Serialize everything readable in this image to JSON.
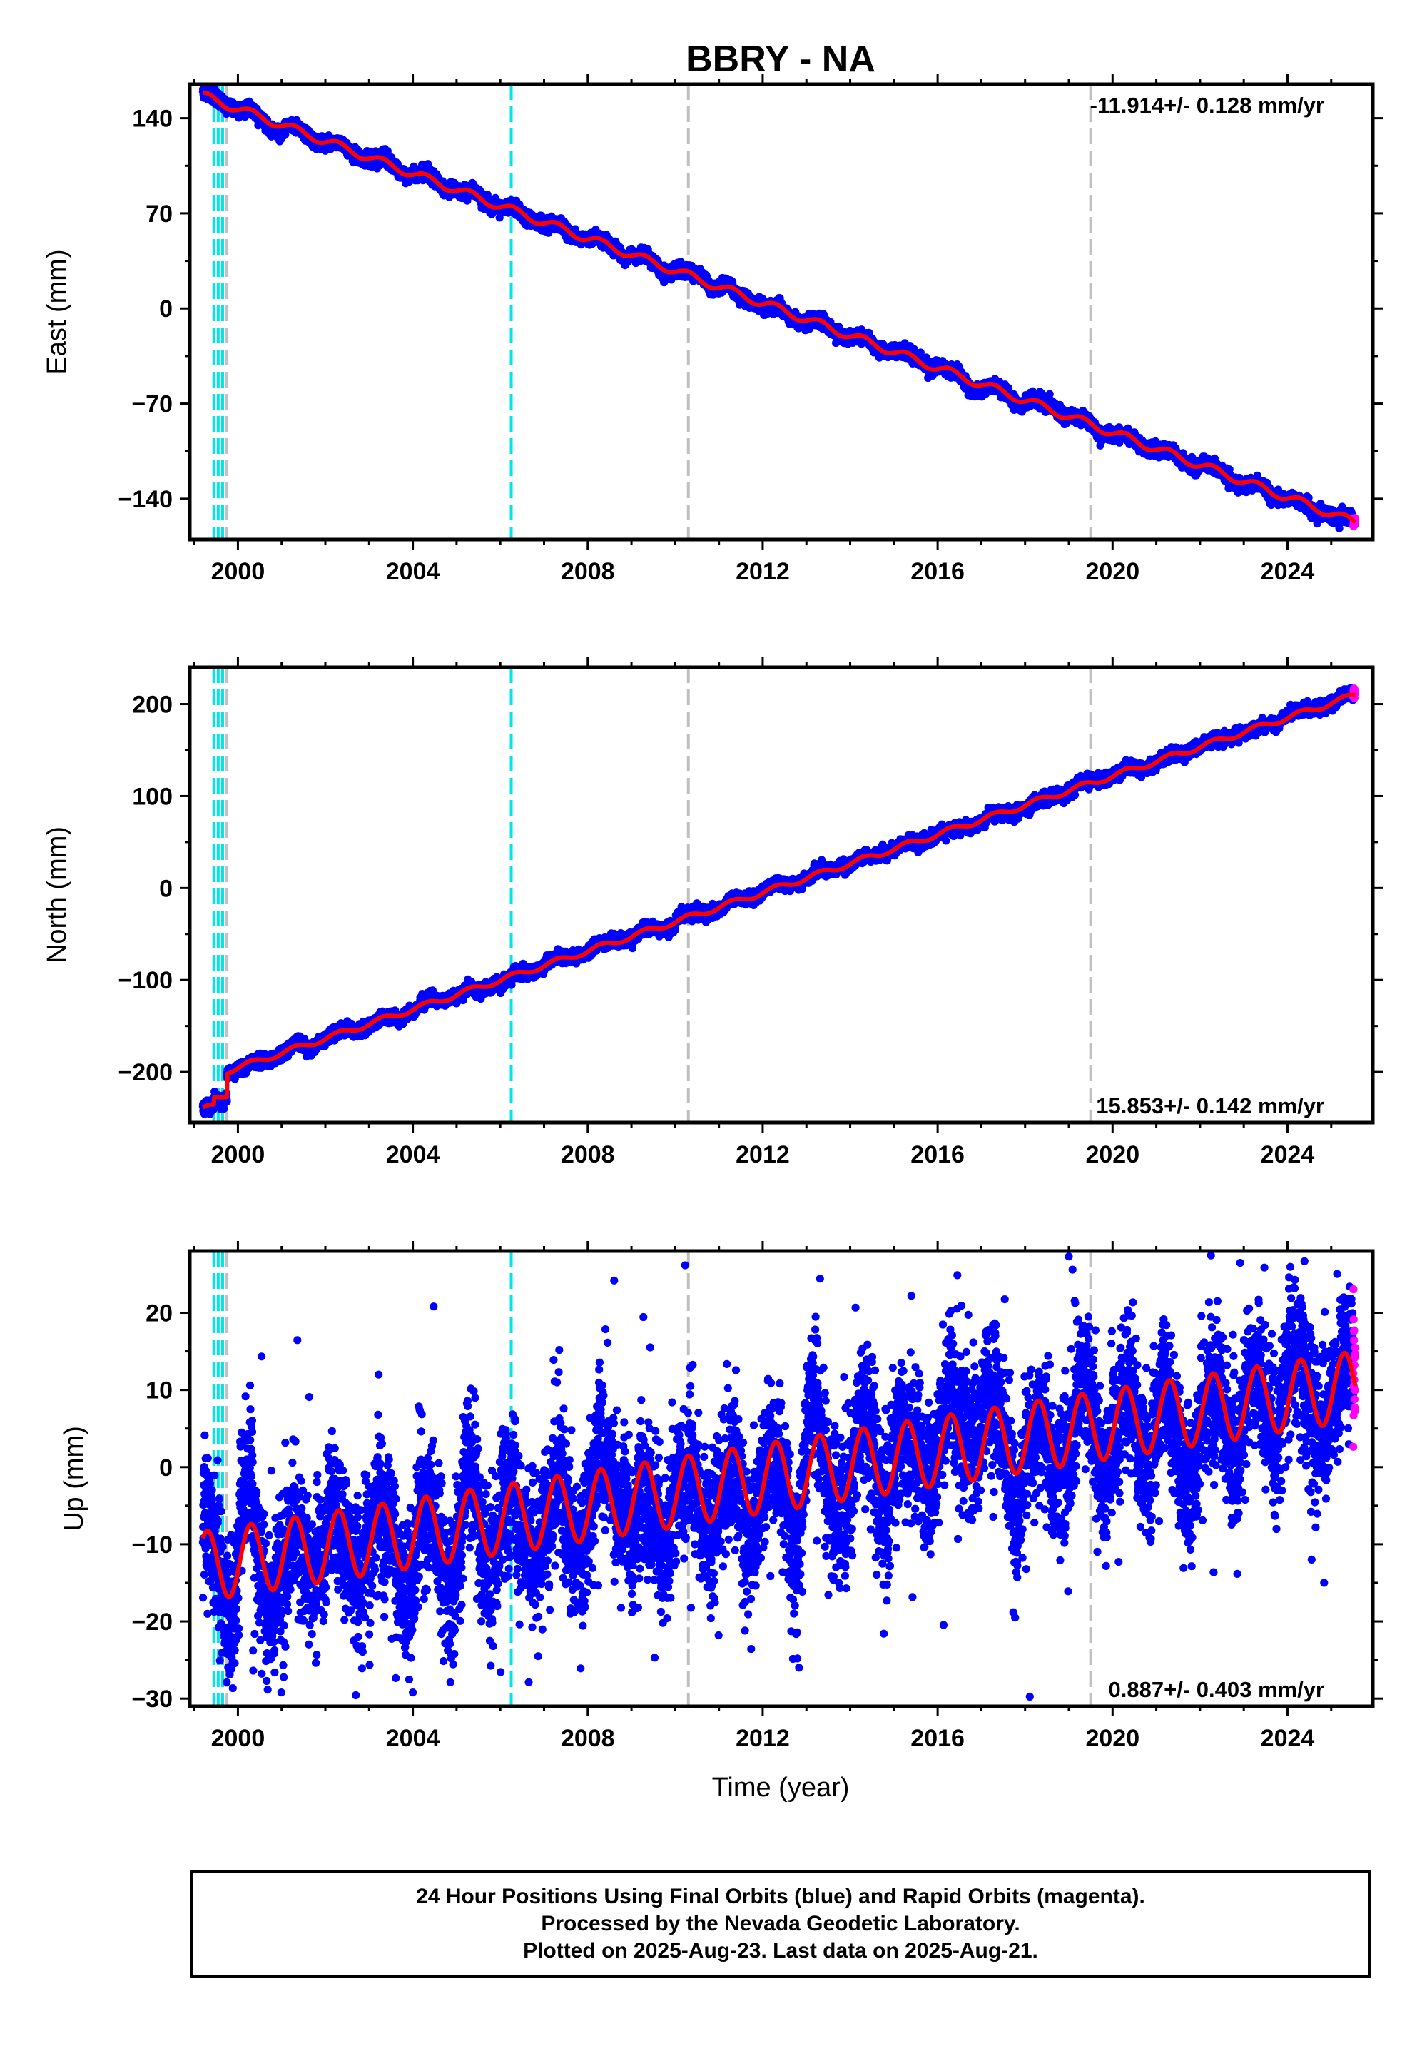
{
  "title": "BBRY - NA",
  "xlabel": "Time (year)",
  "colors": {
    "final": "#0000ff",
    "rapid": "#ff00ff",
    "model": "#ff0000",
    "equipment_change": "#00e5e5",
    "earthquake": "#c0c0c0"
  },
  "legend_lines": [
    "24 Hour Positions Using Final Orbits (blue) and Rapid Orbits (magenta).",
    "Processed by the Nevada Geodetic Laboratory.",
    "Plotted on 2025-Aug-23. Last data on 2025-Aug-21."
  ],
  "chart_data": [
    {
      "type": "scatter",
      "component": "East",
      "ylabel": "East (mm)",
      "rate_label": "-11.914+/- 0.128 mm/yr",
      "xlim": [
        1998.9,
        2025.95
      ],
      "ylim": [
        -170,
        165
      ],
      "xticks": [
        2000,
        2004,
        2008,
        2012,
        2016,
        2020,
        2024
      ],
      "yticks": [
        -140,
        -70,
        0,
        70,
        140
      ],
      "ytick_labels": [
        "−140",
        "−70",
        "0",
        "70",
        "140"
      ],
      "start": 1999.2,
      "end": 2025.55,
      "rapid_start": 2025.5,
      "trend": {
        "t0": 2012,
        "value_at_t0": 4,
        "rate": -11.914
      },
      "offsets": [],
      "seasonal_amplitude": 3,
      "scatter_sd": 2.2,
      "outlier_fraction": 0,
      "equipment_changes": [
        1999.45,
        1999.55,
        1999.65,
        2006.25
      ],
      "earthquakes": [
        1999.75,
        2010.3,
        2019.5
      ]
    },
    {
      "type": "scatter",
      "component": "North",
      "ylabel": "North (mm)",
      "rate_label": "15.853+/- 0.142 mm/yr",
      "xlim": [
        1998.9,
        2025.95
      ],
      "ylim": [
        -255,
        240
      ],
      "xticks": [
        2000,
        2004,
        2008,
        2012,
        2016,
        2020,
        2024
      ],
      "yticks": [
        -200,
        -100,
        0,
        100,
        200
      ],
      "ytick_labels": [
        "−200",
        "−100",
        "0",
        "100",
        "200"
      ],
      "start": 1999.2,
      "end": 2025.55,
      "rapid_start": 2025.5,
      "trend": {
        "t0": 2012,
        "value_at_t0": -5,
        "rate": 15.853
      },
      "offsets": [
        {
          "t": 1999.45,
          "dy": 8
        },
        {
          "t": 1999.75,
          "dy": 25
        }
      ],
      "seasonal_amplitude": 3,
      "scatter_sd": 3,
      "outlier_fraction": 0,
      "equipment_changes": [
        1999.45,
        1999.55,
        1999.65,
        2006.25
      ],
      "earthquakes": [
        1999.75,
        2010.3,
        2019.5
      ]
    },
    {
      "type": "scatter",
      "component": "Up",
      "ylabel": "Up (mm)",
      "rate_label": "0.887+/- 0.403 mm/yr",
      "xlim": [
        1998.9,
        2025.95
      ],
      "ylim": [
        -31,
        28
      ],
      "xticks": [
        2000,
        2004,
        2008,
        2012,
        2016,
        2020,
        2024
      ],
      "yticks": [
        -30,
        -20,
        -10,
        0,
        10,
        20
      ],
      "ytick_labels": [
        "−30",
        "−20",
        "−10",
        "0",
        "10",
        "20"
      ],
      "start": 1999.2,
      "end": 2025.55,
      "rapid_start": 2025.5,
      "trend": {
        "t0": 2012,
        "value_at_t0": -1.5,
        "rate": 0.887
      },
      "offsets": [],
      "seasonal_amplitude": 4.5,
      "scatter_sd": 4.3,
      "outlier_fraction": 0.03,
      "equipment_changes": [
        1999.45,
        1999.55,
        1999.65,
        2006.25
      ],
      "earthquakes": [
        1999.75,
        2010.3,
        2019.5
      ]
    }
  ]
}
